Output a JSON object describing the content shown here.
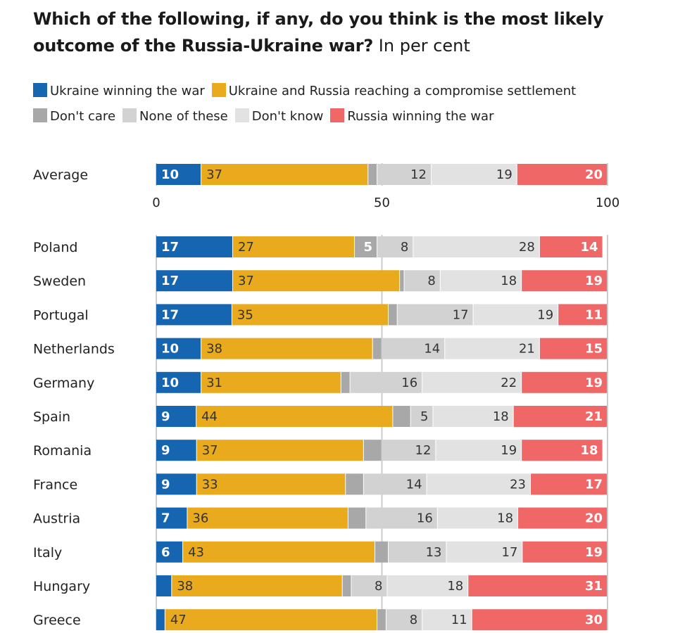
{
  "title_bold": "Which of the following, if any, do you think is the most likely outcome of the Russia-Ukraine war?",
  "title_sub": "In per cent",
  "colors": {
    "ukraine": "#1565b0",
    "compromise": "#eaaa1d",
    "dont_care": "#a8a8a8",
    "none": "#d2d2d2",
    "dont_know": "#e2e2e2",
    "russia": "#ef6766",
    "grid": "#cccccc"
  },
  "chart_data": {
    "type": "bar",
    "orientation": "horizontal",
    "stacked": true,
    "xlim": [
      0,
      100
    ],
    "ticks": [
      "0",
      "50",
      "100"
    ],
    "series": [
      {
        "key": "ukraine",
        "name": "Ukraine winning the war",
        "label_color": "white"
      },
      {
        "key": "compromise",
        "name": "Ukraine and Russia reaching a compromise settlement",
        "label_color": "dark"
      },
      {
        "key": "dont_care",
        "name": "Don't care",
        "label_color": "white"
      },
      {
        "key": "none",
        "name": "None of these",
        "label_color": "dark"
      },
      {
        "key": "dont_know",
        "name": "Don't know",
        "label_color": "dark"
      },
      {
        "key": "russia",
        "name": "Russia winning the war",
        "label_color": "white"
      }
    ],
    "average": {
      "name": "Average",
      "values": [
        10,
        37,
        2,
        12,
        19,
        20
      ],
      "labels": [
        "10",
        "37",
        "",
        "12",
        "19",
        "20"
      ]
    },
    "rows": [
      {
        "name": "Poland",
        "values": [
          17,
          27,
          5,
          8,
          28,
          14
        ],
        "labels": [
          "17",
          "27",
          "5",
          "8",
          "28",
          "14"
        ]
      },
      {
        "name": "Sweden",
        "values": [
          17,
          37,
          1,
          8,
          18,
          19
        ],
        "labels": [
          "17",
          "37",
          "",
          "8",
          "18",
          "19"
        ]
      },
      {
        "name": "Portugal",
        "values": [
          17,
          35,
          2,
          17,
          19,
          11
        ],
        "labels": [
          "17",
          "35",
          "",
          "17",
          "19",
          "11"
        ]
      },
      {
        "name": "Netherlands",
        "values": [
          10,
          38,
          2,
          14,
          21,
          15
        ],
        "labels": [
          "10",
          "38",
          "",
          "14",
          "21",
          "15"
        ]
      },
      {
        "name": "Germany",
        "values": [
          10,
          31,
          2,
          16,
          22,
          19
        ],
        "labels": [
          "10",
          "31",
          "",
          "16",
          "22",
          "19"
        ]
      },
      {
        "name": "Spain",
        "values": [
          9,
          44,
          4,
          5,
          18,
          21
        ],
        "labels": [
          "9",
          "44",
          "",
          "5",
          "18",
          "21"
        ]
      },
      {
        "name": "Romania",
        "values": [
          9,
          37,
          4,
          12,
          19,
          18
        ],
        "labels": [
          "9",
          "37",
          "",
          "12",
          "19",
          "18"
        ]
      },
      {
        "name": "France",
        "values": [
          9,
          33,
          4,
          14,
          23,
          17
        ],
        "labels": [
          "9",
          "33",
          "",
          "14",
          "23",
          "17"
        ]
      },
      {
        "name": "Austria",
        "values": [
          7,
          36,
          4,
          16,
          18,
          20
        ],
        "labels": [
          "7",
          "36",
          "",
          "16",
          "18",
          "20"
        ]
      },
      {
        "name": "Italy",
        "values": [
          6,
          43,
          3,
          13,
          17,
          19
        ],
        "labels": [
          "6",
          "43",
          "",
          "13",
          "17",
          "19"
        ]
      },
      {
        "name": "Hungary",
        "values": [
          3.5,
          38,
          2,
          8,
          18,
          31
        ],
        "labels": [
          "",
          "38",
          "",
          "8",
          "18",
          "31"
        ]
      },
      {
        "name": "Greece",
        "values": [
          2,
          47,
          2,
          8,
          11,
          30
        ],
        "labels": [
          "",
          "47",
          "",
          "8",
          "11",
          "30"
        ]
      }
    ]
  }
}
